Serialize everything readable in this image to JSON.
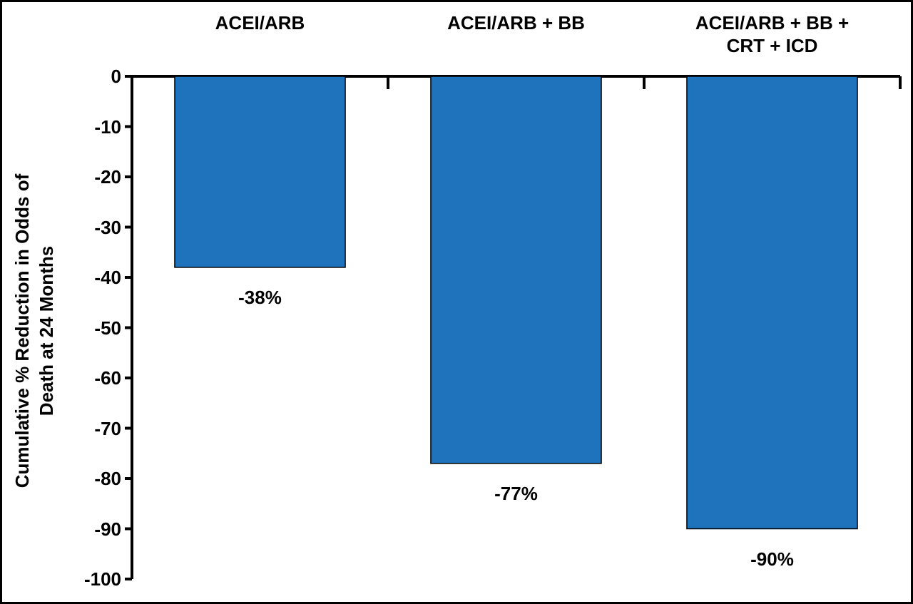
{
  "chart_data": {
    "type": "bar",
    "y_label": "Cumulative % Reduction in Odds of Death at 24 Months",
    "categories": [
      "ACEI/ARB",
      "ACEI/ARB + BB",
      "ACEI/ARB + BB + CRT + ICD"
    ],
    "values": [
      -38,
      -77,
      -90
    ],
    "value_labels": [
      "-38%",
      "-77%",
      "-90%"
    ],
    "color": "#1f72bc",
    "ylim": [
      -100,
      0
    ],
    "yticks": [
      0,
      -10,
      -20,
      -30,
      -40,
      -50,
      -60,
      -70,
      -80,
      -90,
      -100
    ]
  }
}
